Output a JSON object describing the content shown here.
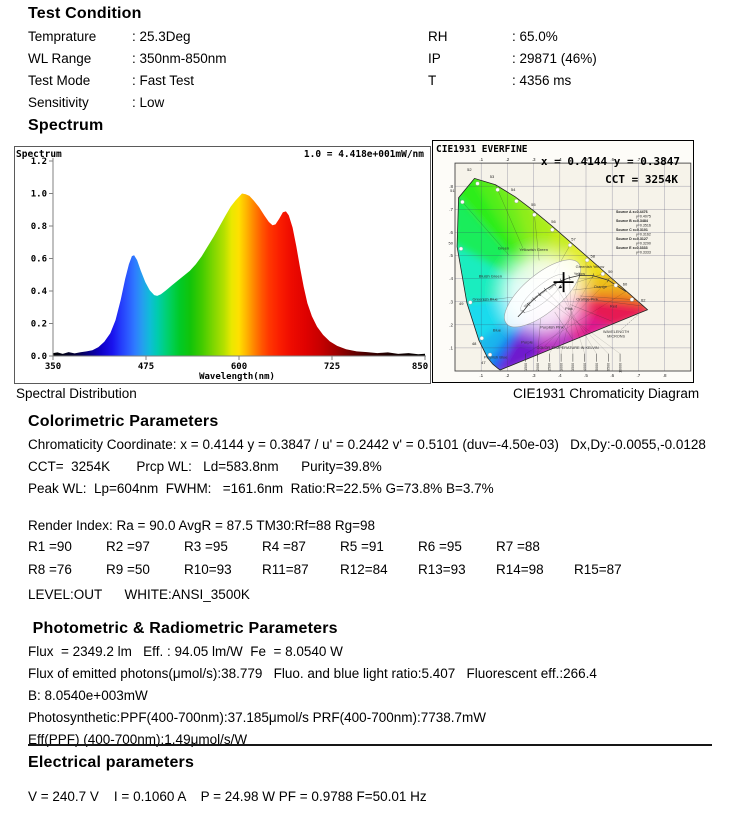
{
  "test_condition": {
    "title": "Test Condition",
    "left_rows": [
      {
        "label": "Temprature",
        "value": ": 25.3Deg"
      },
      {
        "label": "WL Range",
        "value": ": 350nm-850nm"
      },
      {
        "label": "Test Mode",
        "value": ": Fast Test"
      },
      {
        "label": "Sensitivity",
        "value": ": Low"
      }
    ],
    "right_rows": [
      {
        "label": "RH",
        "value": ": 65.0%"
      },
      {
        "label": "IP",
        "value": ": 29871 (46%)"
      },
      {
        "label": "T",
        "value": ": 4356 ms"
      }
    ]
  },
  "spectrum_section": {
    "title": "Spectrum",
    "left_caption": "Spectral Distribution",
    "right_caption": "CIE1931 Chromaticity Diagram"
  },
  "colorimetric": {
    "title": "Colorimetric Parameters",
    "lines": [
      "Chromaticity Coordinate: x = 0.4144 y = 0.3847 / u' = 0.2442 v' = 0.5101 (duv=-4.50e-03)   Dx,Dy:-0.0055,-0.0128",
      "CCT=  3254K       Prcp WL:   Ld=583.8nm      Purity=39.8%",
      "Peak WL:  Lp=604nm  FWHM:   =161.6nm  Ratio:R=22.5% G=73.8% B=3.7%"
    ],
    "render_index_line": "Render Index: Ra = 90.0 AvgR = 87.5 TM30:Rf=88 Rg=98",
    "r_rows": [
      [
        "R1 =90",
        "R2 =97",
        "R3 =95",
        "R4 =87",
        "R5 =91",
        "R6 =95",
        "R7 =88"
      ],
      [
        "R8 =76",
        "R9 =50",
        "R10=93",
        "R11=87",
        "R12=84",
        "R13=93",
        "R14=98",
        "R15=87"
      ]
    ],
    "level_line": "LEVEL:OUT      WHITE:ANSI_3500K"
  },
  "photometric": {
    "title": " Photometric & Radiometric Parameters",
    "lines": [
      "Flux  = 2349.2 lm   Eff. : 94.05 lm/W  Fe  = 8.0540 W",
      "Flux of emitted photons(μmol/s):38.779   Fluo. and blue light ratio:5.407   Fluorescent eff.:266.4",
      "B: 8.0540e+003mW",
      "Photosynthetic:PPF(400-700nm):37.185μmol/s PRF(400-700nm):7738.7mW",
      "Eff(PPF) (400-700nm):1.49μmol/s/W"
    ]
  },
  "electrical": {
    "title": "Electrical parameters",
    "line": "V = 240.7 V    I = 0.1060 A    P = 24.98 W PF = 0.9788 F=50.01 Hz"
  },
  "chart_data": [
    {
      "type": "area",
      "title": "Spectrum",
      "scale_note": "1.0 = 4.418e+001mW/nm",
      "xlabel": "Wavelength(nm)",
      "caption": "Spectral Distribution",
      "xlim": [
        350,
        850
      ],
      "ylim": [
        0,
        1.2
      ],
      "x_ticks": [
        350,
        475,
        600,
        725,
        850
      ],
      "y_ticks": [
        "0.0",
        "0.2",
        "0.4",
        "0.6",
        "0.8",
        "1.0",
        "1.2"
      ],
      "series": [
        {
          "name": "relative spectral power",
          "x": [
            350,
            356,
            363,
            371,
            379,
            387,
            395,
            403,
            411,
            419,
            427,
            434,
            441,
            447,
            452,
            456,
            459,
            463,
            468,
            474,
            480,
            486,
            490,
            495,
            502,
            510,
            518,
            526,
            534,
            542,
            550,
            558,
            566,
            574,
            582,
            589,
            595,
            600,
            604,
            609,
            614,
            620,
            627,
            634,
            640,
            645,
            649,
            654,
            659,
            663,
            667,
            672,
            677,
            682,
            687,
            692,
            698,
            705,
            713,
            722,
            732,
            744,
            758,
            772,
            786,
            800,
            814,
            828,
            841,
            850
          ],
          "y": [
            0.018,
            0.022,
            0.013,
            0.024,
            0.016,
            0.023,
            0.028,
            0.036,
            0.055,
            0.088,
            0.14,
            0.22,
            0.345,
            0.475,
            0.565,
            0.615,
            0.62,
            0.59,
            0.525,
            0.455,
            0.405,
            0.375,
            0.37,
            0.38,
            0.405,
            0.435,
            0.465,
            0.495,
            0.525,
            0.565,
            0.615,
            0.675,
            0.735,
            0.8,
            0.865,
            0.92,
            0.955,
            0.98,
            1.0,
            0.995,
            0.985,
            0.955,
            0.915,
            0.865,
            0.825,
            0.805,
            0.81,
            0.845,
            0.885,
            0.89,
            0.865,
            0.79,
            0.675,
            0.545,
            0.425,
            0.325,
            0.245,
            0.18,
            0.13,
            0.09,
            0.062,
            0.042,
            0.028,
            0.024,
            0.018,
            0.022,
            0.013,
            0.018,
            0.011,
            0.014
          ],
          "peak_wavelength_nm": 604,
          "blue_peak": {
            "wavelength_nm": 456,
            "value": 0.62
          },
          "red_peak": {
            "wavelength_nm": 662,
            "value": 0.89
          }
        }
      ]
    },
    {
      "type": "scatter",
      "title": "CIE1931  EVERFINE",
      "caption": "CIE1931 Chromaticity Diagram",
      "point_label": "x = 0.4144 y = 0.3847",
      "cct_label": "CCT = 3254K",
      "point": {
        "x": 0.4144,
        "y": 0.3847
      },
      "xlim": [
        0,
        0.9
      ],
      "ylim": [
        0,
        0.9
      ],
      "grid_step": 0.1,
      "edge_tick_labels": [
        ".1",
        ".2",
        ".3",
        ".4",
        ".5",
        ".6",
        ".7",
        ".8"
      ],
      "locus": [
        [
          380,
          0.1741,
          0.005
        ],
        [
          420,
          0.1714,
          0.0051
        ],
        [
          440,
          0.1644,
          0.0109
        ],
        [
          460,
          0.144,
          0.0297
        ],
        [
          470,
          0.1241,
          0.0578
        ],
        [
          480,
          0.0913,
          0.1327
        ],
        [
          490,
          0.0454,
          0.295
        ],
        [
          500,
          0.0082,
          0.5384
        ],
        [
          510,
          0.0139,
          0.7502
        ],
        [
          520,
          0.0743,
          0.8338
        ],
        [
          530,
          0.1547,
          0.8059
        ],
        [
          540,
          0.2296,
          0.7543
        ],
        [
          550,
          0.3016,
          0.6923
        ],
        [
          560,
          0.3731,
          0.6245
        ],
        [
          570,
          0.4441,
          0.5547
        ],
        [
          580,
          0.5125,
          0.4866
        ],
        [
          590,
          0.5752,
          0.4242
        ],
        [
          600,
          0.627,
          0.3725
        ],
        [
          610,
          0.6658,
          0.334
        ],
        [
          620,
          0.6915,
          0.3083
        ],
        [
          640,
          0.719,
          0.2809
        ],
        [
          700,
          0.7347,
          0.2653
        ]
      ],
      "dot_wavelengths": [
        470,
        480,
        490,
        500,
        510,
        520,
        530,
        540,
        550,
        560,
        570,
        580,
        590,
        600,
        620
      ],
      "planckian": [
        [
          0.652,
          0.344
        ],
        [
          0.585,
          0.393
        ],
        [
          0.527,
          0.413
        ],
        [
          0.475,
          0.414
        ],
        [
          0.437,
          0.404
        ],
        [
          0.405,
          0.391
        ],
        [
          0.38,
          0.377
        ],
        [
          0.345,
          0.352
        ],
        [
          0.322,
          0.332
        ],
        [
          0.302,
          0.311
        ],
        [
          0.281,
          0.288
        ],
        [
          0.26,
          0.258
        ],
        [
          0.24,
          0.234
        ]
      ],
      "kelvin_scale_label": "COLOR TEMPERATURE IN KELVIN",
      "kelvin_ticks": [
        "1500",
        "2000",
        "2500",
        "3000",
        "3500",
        "4000",
        "5000",
        "6500",
        "10000"
      ],
      "wavelength_label": "WAVELENGTH MICRONS",
      "source_legend": [
        {
          "name": "Source A",
          "x": "x=0.4476",
          "y": "y=0.4075"
        },
        {
          "name": "Source B",
          "x": "x=0.3484",
          "y": "y=0.3516"
        },
        {
          "name": "Source C",
          "x": "x=0.3101",
          "y": "y=0.3162"
        },
        {
          "name": "Source D",
          "x": "x=0.3127",
          "y": "y=0.3290"
        },
        {
          "name": "Source E",
          "x": "x=0.3333",
          "y": "y=0.3333"
        }
      ],
      "region_labels": [
        {
          "t": "Green",
          "x": 0.185,
          "y": 0.525
        },
        {
          "t": "Yellowish Green",
          "x": 0.3,
          "y": 0.52
        },
        {
          "t": "Greenish Yellow",
          "x": 0.515,
          "y": 0.445
        },
        {
          "t": "Yellow",
          "x": 0.475,
          "y": 0.415
        },
        {
          "t": "Orange",
          "x": 0.555,
          "y": 0.36
        },
        {
          "t": "Red",
          "x": 0.605,
          "y": 0.275
        },
        {
          "t": "Orange Pink",
          "x": 0.505,
          "y": 0.305
        },
        {
          "t": "Pink",
          "x": 0.435,
          "y": 0.265
        },
        {
          "t": "Purplish Pink",
          "x": 0.37,
          "y": 0.185
        },
        {
          "t": "Purple",
          "x": 0.275,
          "y": 0.12
        },
        {
          "t": "Purplish Blue",
          "x": 0.155,
          "y": 0.055
        },
        {
          "t": "Blue",
          "x": 0.16,
          "y": 0.17
        },
        {
          "t": "Greenish Blue",
          "x": 0.115,
          "y": 0.305
        },
        {
          "t": "Bluish Green",
          "x": 0.135,
          "y": 0.405
        }
      ],
      "white_labels": [
        {
          "t": "Warm White",
          "x": 0.292,
          "y": 0.298
        },
        {
          "t": "White",
          "x": 0.334,
          "y": 0.334
        },
        {
          "t": "Daylight",
          "x": 0.376,
          "y": 0.366
        }
      ]
    }
  ]
}
